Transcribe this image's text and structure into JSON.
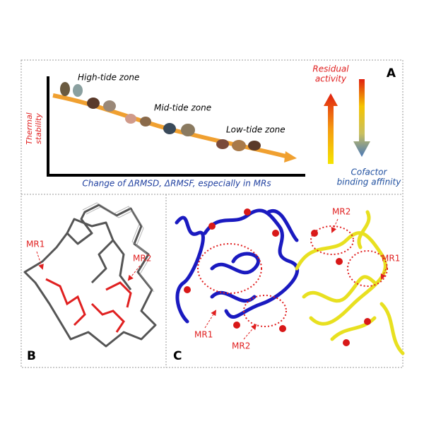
{
  "panel_a": {
    "label": "A",
    "zones": [
      "High-tide zone",
      "Mid-tide zone",
      "Low-tide zone"
    ],
    "y_axis_label": [
      "Thermal",
      "stability"
    ],
    "x_axis_label": "Change of ΔRMSD, ΔRMSF, especially in MRs",
    "up_arrow_label": [
      "Residual",
      "activity"
    ],
    "down_arrow_label": [
      "Cofactor",
      "binding affinity"
    ]
  },
  "panel_b": {
    "label": "B",
    "annotations": [
      "MR1",
      "MR2"
    ]
  },
  "panel_c": {
    "label": "C",
    "annotations": [
      "MR2",
      "MR1",
      "MR1",
      "MR2"
    ]
  }
}
